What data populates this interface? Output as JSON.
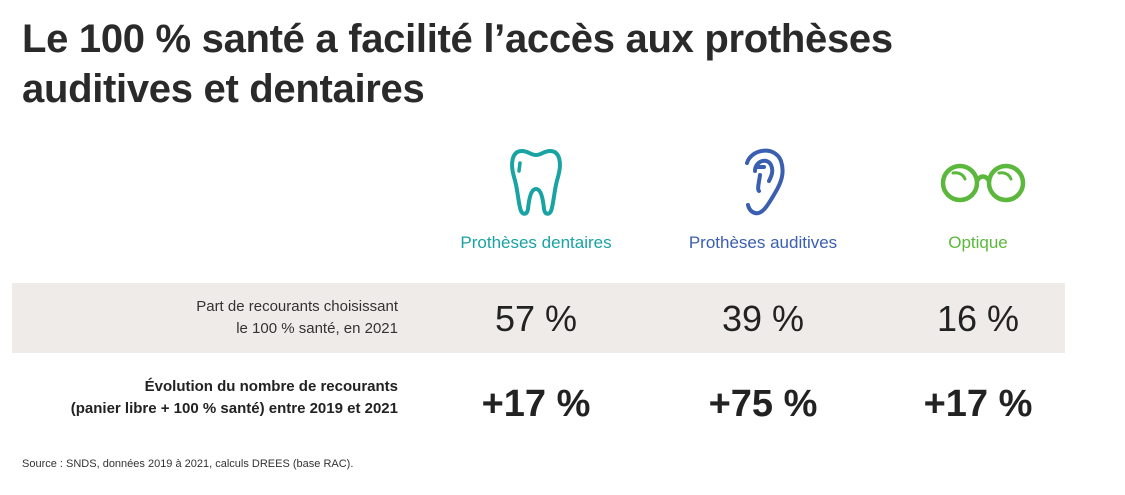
{
  "title": "Le 100 % santé a facilité l’accès aux prothèses auditives et dentaires",
  "colors": {
    "dentaire": "#1aa3a3",
    "auditive": "#3a5eb0",
    "optique": "#5cb83c",
    "band": "#efebe8"
  },
  "columns": [
    {
      "label": "Prothèses dentaires",
      "icon": "tooth-icon",
      "share": "57 %",
      "evolution": "+17 %"
    },
    {
      "label": "Prothèses auditives",
      "icon": "ear-icon",
      "share": "39 %",
      "evolution": "+75 %"
    },
    {
      "label": "Optique",
      "icon": "glasses-icon",
      "share": "16 %",
      "evolution": "+17 %"
    }
  ],
  "rows": {
    "share_label_1": "Part de recourants choisissant",
    "share_label_2": "le 100 % santé, en 2021",
    "evolution_label_1": "Évolution du nombre de recourants",
    "evolution_label_2": "(panier libre + 100 % santé) entre 2019 et 2021"
  },
  "source": "Source : SNDS, données 2019 à 2021, calculs DREES (base RAC)."
}
